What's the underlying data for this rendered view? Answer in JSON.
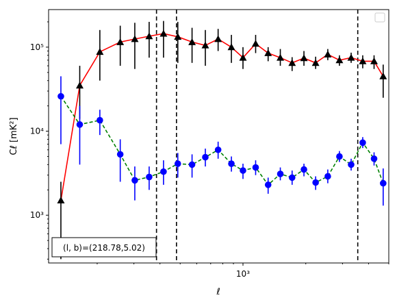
{
  "chart_data": {
    "type": "line",
    "title": "",
    "xlabel": "ℓ",
    "ylabel": "Cℓ [mK²]",
    "xscale": "log",
    "yscale": "log",
    "xlim": [
      117,
      5000
    ],
    "ylim": [
      270,
      280000
    ],
    "x_tick_labels": [
      "10³"
    ],
    "y_tick_labels": [
      "10³",
      "10⁴",
      "10⁵"
    ],
    "annotation": "(l, b)=(218.78,5.02)",
    "legend": "top-right",
    "grid": false,
    "vertical_lines_x": [
      385,
      480,
      3550
    ],
    "series": [
      {
        "color": "#ff0000",
        "marker": "triangle",
        "marker_color": "#000000",
        "errorbar_color": "#000000",
        "linestyle": "solid",
        "points": [
          [
            134,
            1500,
            300,
            2500
          ],
          [
            165,
            35000,
            14000,
            60000
          ],
          [
            206,
            88000,
            40000,
            160000
          ],
          [
            258,
            115000,
            60000,
            180000
          ],
          [
            303,
            125000,
            55000,
            195000
          ],
          [
            355,
            135000,
            75000,
            200000
          ],
          [
            416,
            145000,
            75000,
            205000
          ],
          [
            487,
            133000,
            65000,
            200000
          ],
          [
            570,
            115000,
            65000,
            170000
          ],
          [
            660,
            105000,
            60000,
            160000
          ],
          [
            760,
            125000,
            90000,
            165000
          ],
          [
            880,
            100000,
            65000,
            140000
          ],
          [
            1000,
            75000,
            55000,
            100000
          ],
          [
            1150,
            110000,
            85000,
            140000
          ],
          [
            1320,
            85000,
            68000,
            100000
          ],
          [
            1510,
            75000,
            60000,
            95000
          ],
          [
            1720,
            65000,
            52000,
            76000
          ],
          [
            1960,
            74000,
            60000,
            90000
          ],
          [
            2230,
            65000,
            55000,
            77000
          ],
          [
            2550,
            82000,
            70000,
            95000
          ],
          [
            2900,
            70000,
            60000,
            80000
          ],
          [
            3300,
            75000,
            65000,
            86000
          ],
          [
            3750,
            68000,
            56000,
            80000
          ],
          [
            4250,
            68000,
            55000,
            80000
          ],
          [
            4700,
            45000,
            25000,
            62000
          ]
        ]
      },
      {
        "color": "#008000",
        "marker": "circle",
        "marker_color": "#0000ff",
        "errorbar_color": "#0000ff",
        "linestyle": "dashed",
        "points": [
          [
            134,
            26000,
            7000,
            45000
          ],
          [
            165,
            12000,
            4000,
            20000
          ],
          [
            206,
            13500,
            9000,
            18000
          ],
          [
            258,
            5300,
            2500,
            8000
          ],
          [
            303,
            2600,
            1500,
            3800
          ],
          [
            355,
            2850,
            2000,
            3800
          ],
          [
            416,
            3300,
            2300,
            4500
          ],
          [
            487,
            4100,
            2800,
            5500
          ],
          [
            570,
            4000,
            2800,
            5300
          ],
          [
            660,
            4900,
            3800,
            6200
          ],
          [
            760,
            6000,
            4700,
            7500
          ],
          [
            880,
            4100,
            3300,
            5000
          ],
          [
            1000,
            3400,
            2700,
            4100
          ],
          [
            1150,
            3700,
            3000,
            4500
          ],
          [
            1320,
            2300,
            1800,
            2800
          ],
          [
            1510,
            3100,
            2600,
            3700
          ],
          [
            1720,
            2800,
            2300,
            3400
          ],
          [
            1960,
            3500,
            2900,
            4100
          ],
          [
            2230,
            2450,
            2000,
            2900
          ],
          [
            2550,
            2900,
            2400,
            3500
          ],
          [
            2900,
            5000,
            4300,
            5800
          ],
          [
            3300,
            4000,
            3400,
            4700
          ],
          [
            3750,
            7300,
            6300,
            8500
          ],
          [
            4250,
            4700,
            3900,
            5600
          ],
          [
            4700,
            2400,
            1300,
            3600
          ]
        ]
      }
    ]
  }
}
